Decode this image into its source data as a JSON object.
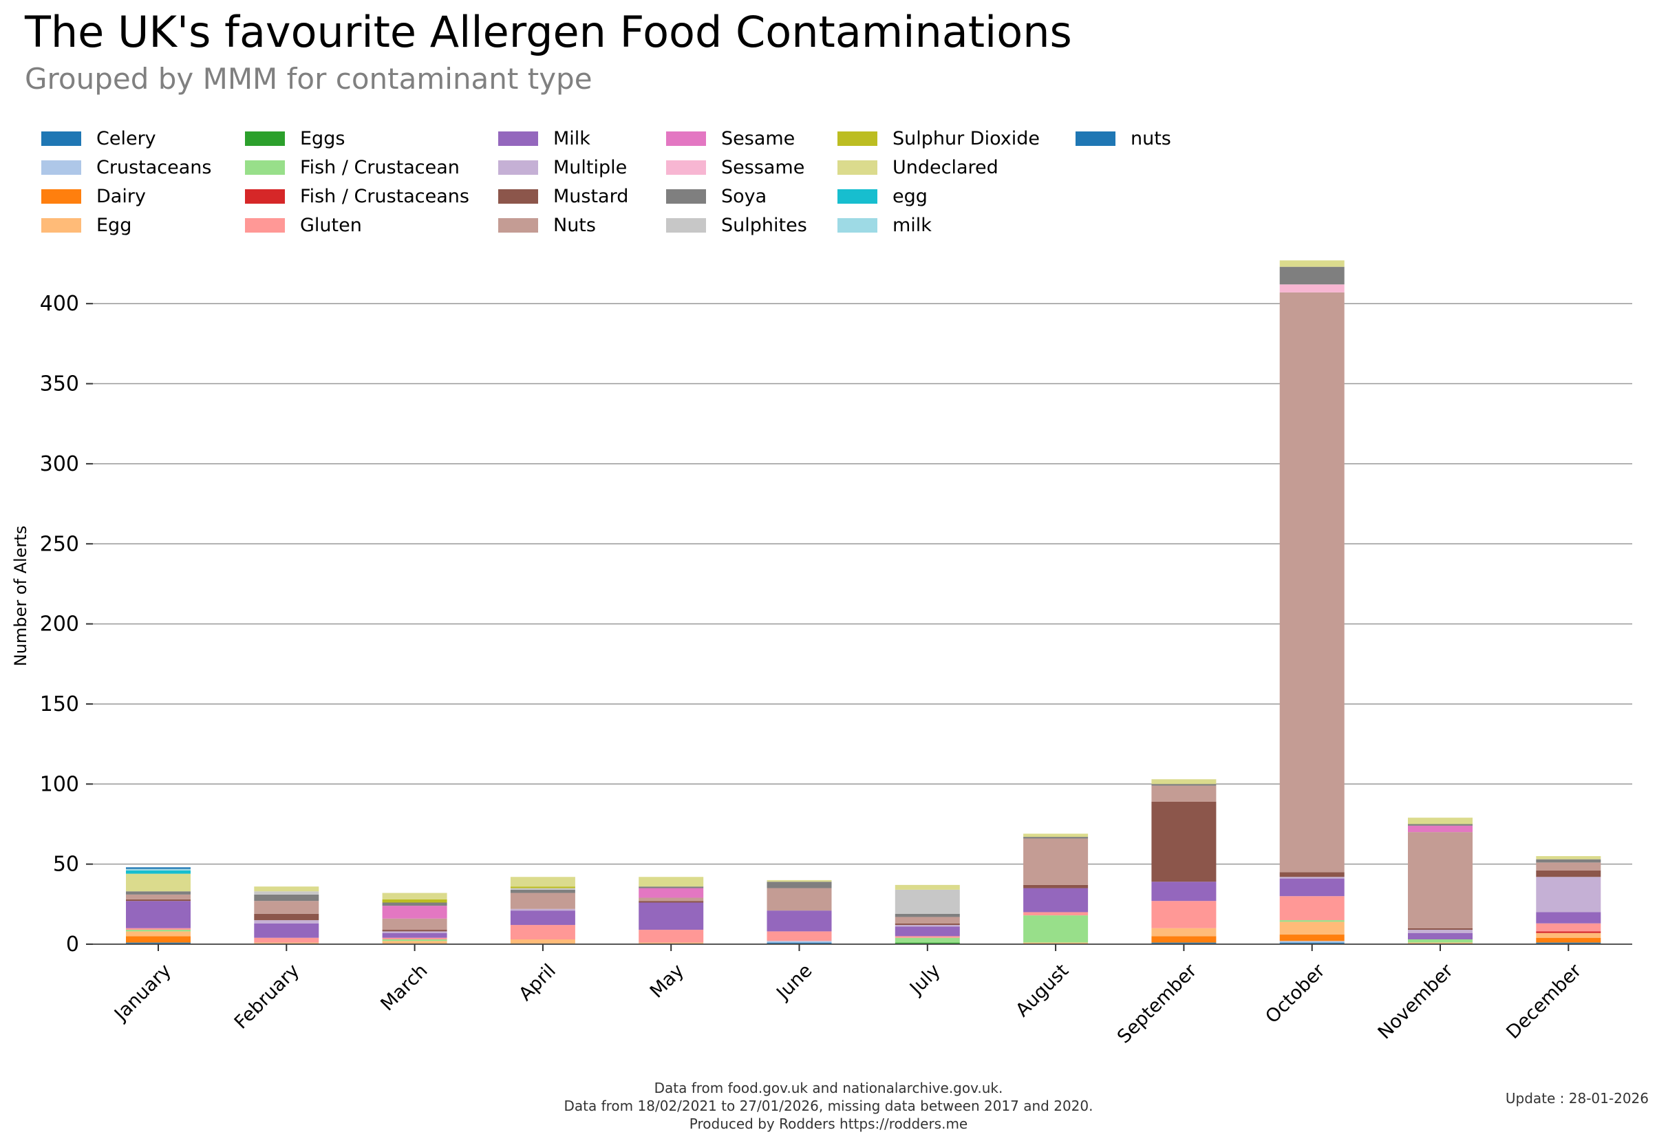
{
  "header": {
    "title": "The UK's favourite Allergen Food Contaminations",
    "subtitle": "Grouped by MMM for contaminant type"
  },
  "footer": {
    "line1": "Data from food.gov.uk and nationalarchive.gov.uk.",
    "line2": "Data from 18/02/2021 to 27/01/2026, missing data between 2017 and 2020.",
    "line3": "Produced by Rodders https://rodders.me",
    "update": "Update : 28-01-2026"
  },
  "chart_data": {
    "type": "bar",
    "stacked": true,
    "title": "The UK's favourite Allergen Food Contaminations",
    "subtitle": "Grouped by MMM for contaminant type",
    "xlabel": "",
    "ylabel": "Number of Alerts",
    "ylim": [
      0,
      430
    ],
    "yticks": [
      0,
      50,
      100,
      150,
      200,
      250,
      300,
      350,
      400
    ],
    "grid": "horizontal",
    "legend_position": "top-left",
    "categories": [
      "January",
      "February",
      "March",
      "April",
      "May",
      "June",
      "July",
      "August",
      "September",
      "October",
      "November",
      "December"
    ],
    "series": [
      {
        "name": "Celery",
        "color": "#1f77b4",
        "values": [
          1,
          0,
          0,
          0,
          0,
          1,
          0,
          0,
          1,
          1,
          0,
          1
        ]
      },
      {
        "name": "Crustaceans",
        "color": "#aec7e8",
        "values": [
          0,
          0,
          0,
          0,
          0,
          1,
          0,
          0,
          0,
          1,
          0,
          0
        ]
      },
      {
        "name": "Dairy",
        "color": "#ff7f0e",
        "values": [
          4,
          0,
          0,
          0,
          0,
          0,
          0,
          0,
          4,
          4,
          0,
          3
        ]
      },
      {
        "name": "Egg",
        "color": "#ffbb78",
        "values": [
          3,
          1,
          2,
          3,
          1,
          0,
          0,
          1,
          5,
          8,
          1,
          3
        ]
      },
      {
        "name": "Eggs",
        "color": "#2ca02c",
        "values": [
          0,
          0,
          0,
          0,
          0,
          0,
          1,
          0,
          0,
          0,
          0,
          0
        ]
      },
      {
        "name": "Fish / Crustacean",
        "color": "#98df8a",
        "values": [
          1,
          0,
          1,
          0,
          0,
          0,
          3,
          17,
          0,
          1,
          2,
          0
        ]
      },
      {
        "name": "Fish / Crustaceans",
        "color": "#d62728",
        "values": [
          0,
          0,
          0,
          0,
          0,
          0,
          0,
          0,
          0,
          0,
          0,
          1
        ]
      },
      {
        "name": "Gluten",
        "color": "#ff9896",
        "values": [
          1,
          3,
          1,
          9,
          8,
          6,
          1,
          2,
          17,
          15,
          0,
          5
        ]
      },
      {
        "name": "Milk",
        "color": "#9467bd",
        "values": [
          17,
          9,
          3,
          9,
          17,
          13,
          6,
          15,
          12,
          11,
          4,
          7
        ]
      },
      {
        "name": "Multiple",
        "color": "#c5b0d5",
        "values": [
          0,
          2,
          1,
          1,
          0,
          0,
          1,
          0,
          0,
          1,
          2,
          22
        ]
      },
      {
        "name": "Mustard",
        "color": "#8c564b",
        "values": [
          1,
          4,
          1,
          0,
          1,
          0,
          1,
          2,
          50,
          3,
          1,
          4
        ]
      },
      {
        "name": "Nuts",
        "color": "#c49c94",
        "values": [
          3,
          8,
          7,
          10,
          2,
          14,
          4,
          29,
          10,
          362,
          60,
          5
        ]
      },
      {
        "name": "Sesame",
        "color": "#e377c2",
        "values": [
          0,
          0,
          8,
          0,
          6,
          0,
          0,
          0,
          0,
          0,
          4,
          0
        ]
      },
      {
        "name": "Sessame",
        "color": "#f7b6d2",
        "values": [
          0,
          0,
          0,
          0,
          0,
          0,
          0,
          0,
          0,
          5,
          0,
          0
        ]
      },
      {
        "name": "Soya",
        "color": "#7f7f7f",
        "values": [
          2,
          4,
          2,
          2,
          1,
          4,
          2,
          1,
          1,
          11,
          1,
          2
        ]
      },
      {
        "name": "Sulphites",
        "color": "#c7c7c7",
        "values": [
          0,
          2,
          0,
          1,
          0,
          0,
          15,
          0,
          0,
          0,
          0,
          0
        ]
      },
      {
        "name": "Sulphur Dioxide",
        "color": "#bcbd22",
        "values": [
          0,
          0,
          2,
          1,
          0,
          0,
          0,
          0,
          0,
          0,
          0,
          0
        ]
      },
      {
        "name": "Undeclared",
        "color": "#dbdb8d",
        "values": [
          11,
          3,
          4,
          6,
          6,
          1,
          3,
          2,
          3,
          4,
          4,
          2
        ]
      },
      {
        "name": "egg",
        "color": "#17becf",
        "values": [
          2,
          0,
          0,
          0,
          0,
          0,
          0,
          0,
          0,
          0,
          0,
          0
        ]
      },
      {
        "name": "milk",
        "color": "#9edae5",
        "values": [
          1,
          0,
          0,
          0,
          0,
          0,
          0,
          0,
          0,
          0,
          0,
          0
        ]
      },
      {
        "name": "nuts",
        "color": "#1f77b4",
        "values": [
          1,
          0,
          0,
          0,
          0,
          0,
          0,
          0,
          0,
          0,
          0,
          0
        ]
      }
    ]
  }
}
